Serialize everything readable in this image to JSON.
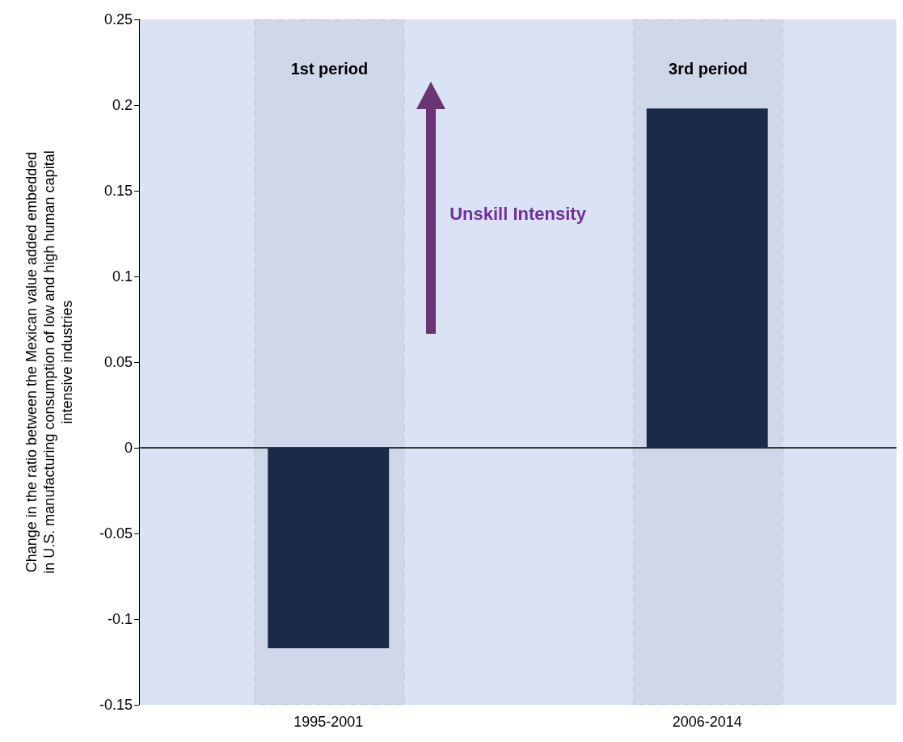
{
  "chart_data": {
    "type": "bar",
    "ylabel": "Change in the ratio between the Mexican value added embedded\nin U.S. manufacturing consumption of low and high human capital\nintensive industries",
    "categories": [
      "1995-2001",
      "2006-2014"
    ],
    "values": [
      -0.117,
      0.198
    ],
    "color": "#1b2b47",
    "ylim": [
      -0.15,
      0.25
    ],
    "yticks": [
      -0.15,
      -0.1,
      -0.05,
      0,
      0.05,
      0.1,
      0.15,
      0.2,
      0.25
    ],
    "bands": [
      {
        "axis": "x",
        "from": "1995-2001",
        "to": "1995-2001",
        "label": "1st period",
        "color": "#1b2b47"
      },
      {
        "axis": "x",
        "from": "2006-2014",
        "to": "2006-2014",
        "label": "3rd period",
        "color": "#1b2b47"
      }
    ],
    "annotations": [
      "Unskill Intensity"
    ]
  }
}
